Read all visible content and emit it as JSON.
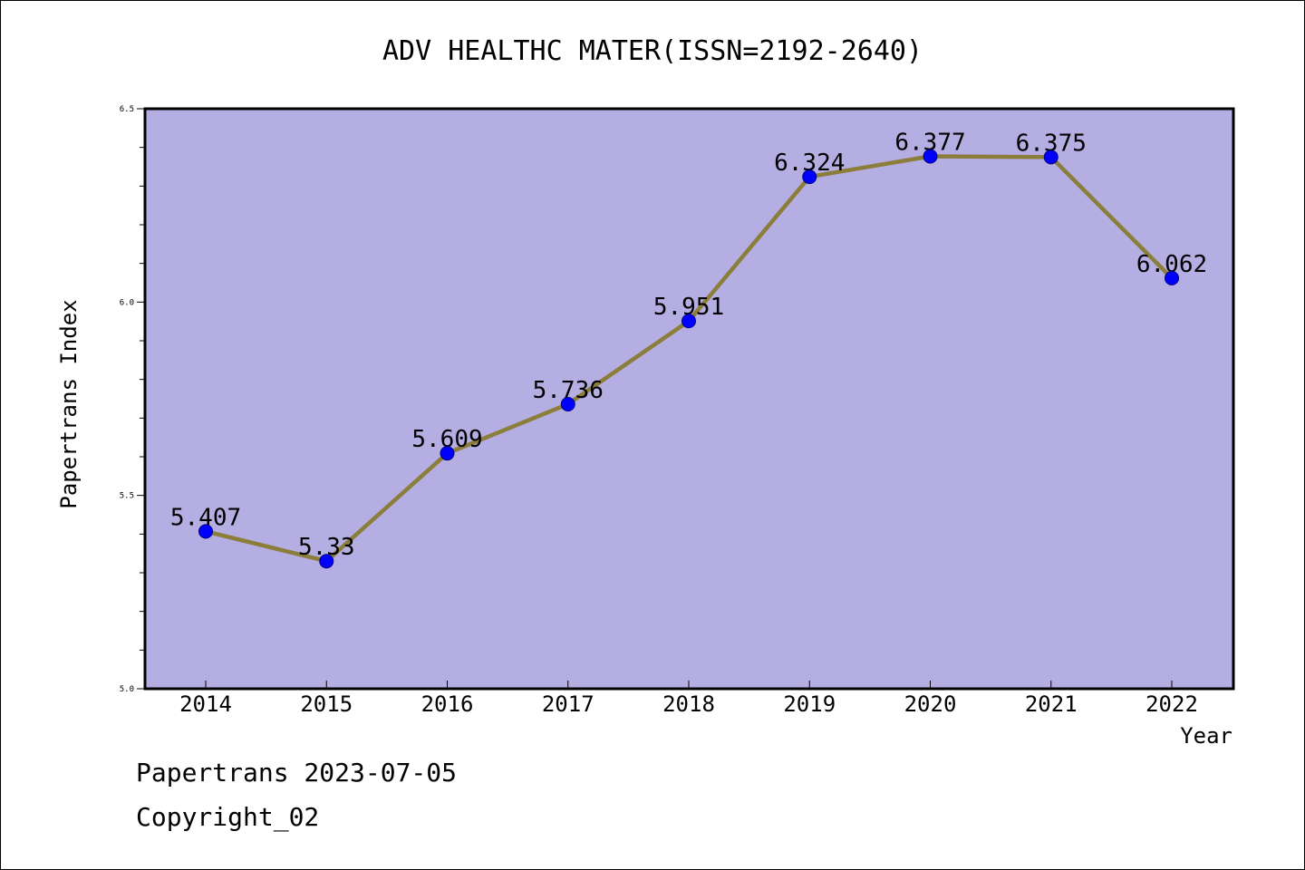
{
  "chart_data": {
    "type": "line",
    "title": "ADV HEALTHC MATER(ISSN=2192-2640)",
    "xlabel": "Year",
    "ylabel": "Papertrans Index",
    "categories": [
      "2014",
      "2015",
      "2016",
      "2017",
      "2018",
      "2019",
      "2020",
      "2021",
      "2022"
    ],
    "series": [
      {
        "values": [
          5.407,
          5.33,
          5.609,
          5.736,
          5.951,
          6.324,
          6.377,
          6.375,
          6.062
        ],
        "labels": [
          "5.407",
          "5.33",
          "5.609",
          "5.736",
          "5.951",
          "6.324",
          "6.377",
          "6.375",
          "6.062"
        ]
      }
    ],
    "ylim": [
      5.0,
      6.5
    ],
    "yticks": [
      "5.0",
      "5.5",
      "6.0",
      "6.5"
    ],
    "grid": false,
    "colors": {
      "plot_background": "#b4aee2",
      "line": "#8b7d3a",
      "marker": "#0000ff",
      "marker_edge": "#000080",
      "axes": "#000000"
    }
  },
  "footer": {
    "line1": "Papertrans 2023-07-05",
    "line2": "Copyright_02"
  }
}
